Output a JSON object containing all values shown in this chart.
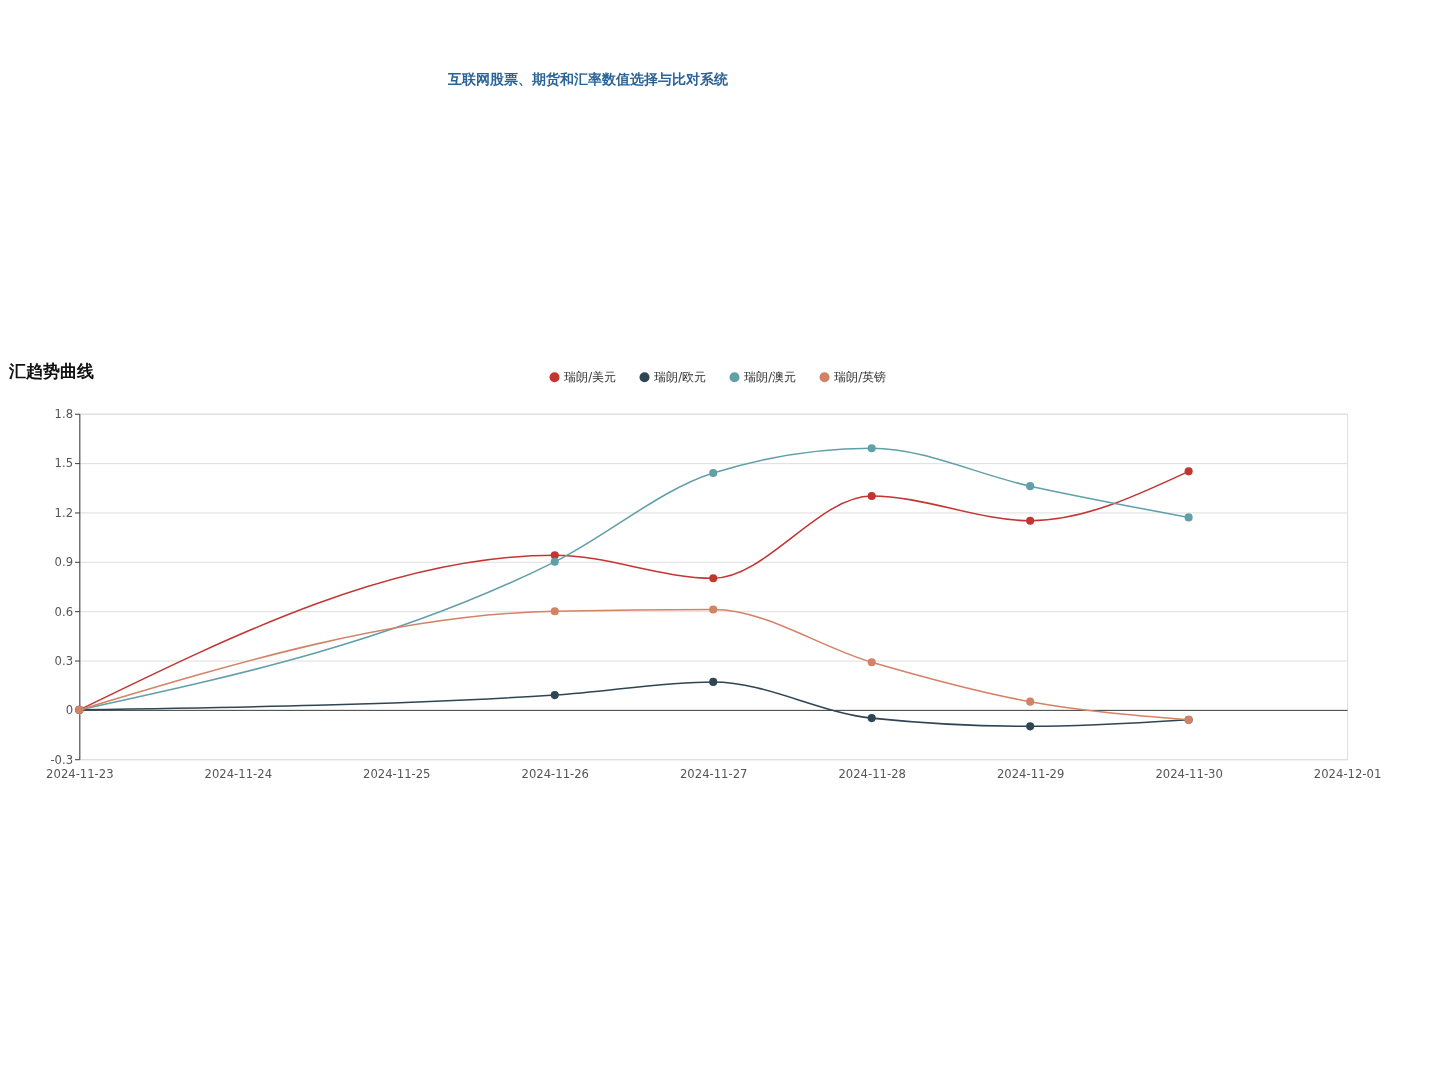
{
  "chart_data": {
    "type": "line",
    "title": "互联网股票、期货和汇率数值选择与比对系统",
    "subtitle": "汇趋势曲线",
    "x": [
      "2024-11-23",
      "2024-11-26",
      "2024-11-27",
      "2024-11-28",
      "2024-11-29",
      "2024-11-30"
    ],
    "series": [
      {
        "name": "瑞朗/美元",
        "color": "#c23531",
        "values": [
          0,
          0.94,
          0.8,
          1.3,
          1.15,
          1.45
        ]
      },
      {
        "name": "瑞朗/欧元",
        "color": "#2f4554",
        "values": [
          0,
          0.09,
          0.17,
          -0.05,
          -0.1,
          -0.06
        ]
      },
      {
        "name": "瑞朗/澳元",
        "color": "#61a0a8",
        "values": [
          0,
          0.9,
          1.44,
          1.59,
          1.36,
          1.17
        ]
      },
      {
        "name": "瑞朗/英镑",
        "color": "#d48265",
        "values": [
          0,
          0.6,
          0.61,
          0.29,
          0.05,
          -0.06
        ]
      }
    ],
    "xlim": [
      "2024-11-23",
      "2024-12-01"
    ],
    "xticks": [
      "2024-11-23",
      "2024-11-24",
      "2024-11-25",
      "2024-11-26",
      "2024-11-27",
      "2024-11-28",
      "2024-11-29",
      "2024-11-30",
      "2024-12-01"
    ],
    "ylim": [
      -0.3,
      1.8
    ],
    "yticks": [
      -0.3,
      0,
      0.3,
      0.6,
      0.9,
      1.2,
      1.5,
      1.8
    ],
    "grid": "y",
    "legend": "top",
    "marker": "circle",
    "line_style": "solid"
  }
}
